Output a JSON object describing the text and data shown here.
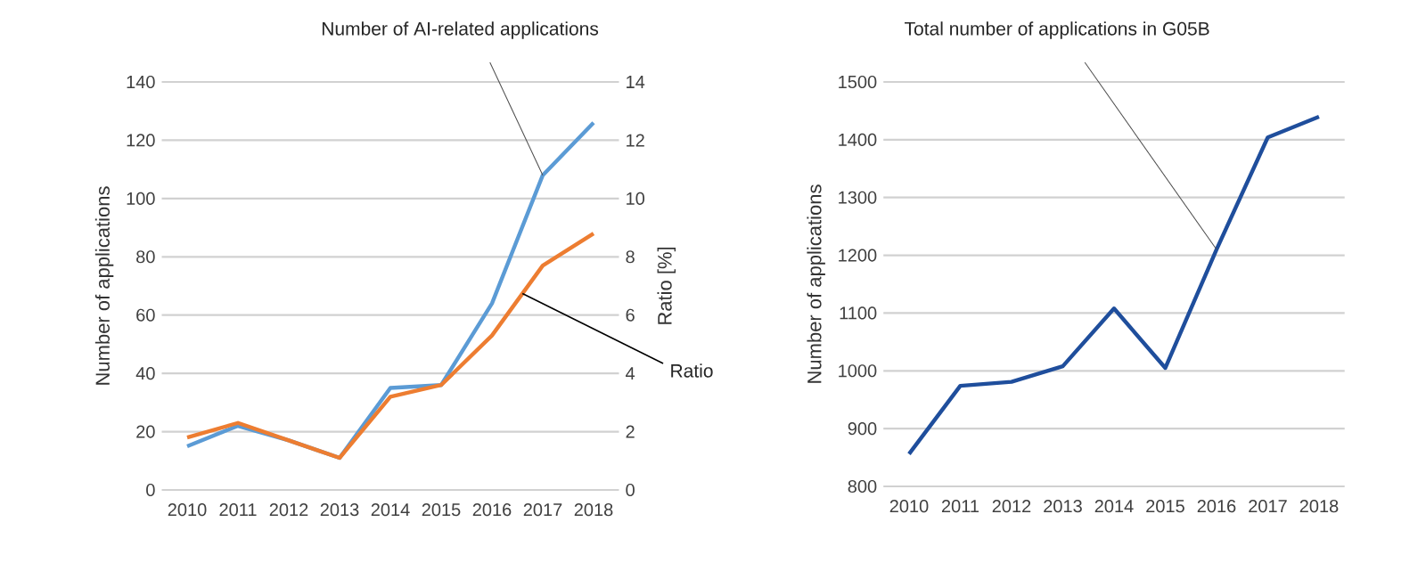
{
  "chart_data": [
    {
      "type": "line",
      "categories": [
        "2010",
        "2011",
        "2012",
        "2013",
        "2014",
        "2015",
        "2016",
        "2017",
        "2018"
      ],
      "ylabel": "Number of applications",
      "y2label": "Ratio [%]",
      "ylim": [
        0,
        140
      ],
      "yticks": [
        0,
        20,
        40,
        60,
        80,
        100,
        120,
        140
      ],
      "y2lim": [
        0,
        14
      ],
      "y2ticks": [
        0,
        2,
        4,
        6,
        8,
        10,
        12,
        14
      ],
      "grid": "y",
      "line_style": "solid",
      "marker": "none",
      "series": [
        {
          "name": "Number of AI-related applications",
          "color": "#5b9bd5",
          "values": [
            15,
            22,
            17,
            11,
            35,
            36,
            64,
            108,
            126
          ]
        },
        {
          "name": "Ratio",
          "color": "#ed7d31",
          "axis": "y2",
          "values": [
            1.8,
            2.3,
            1.7,
            1.1,
            3.2,
            3.6,
            5.3,
            7.7,
            8.8
          ]
        }
      ]
    },
    {
      "type": "line",
      "categories": [
        "2010",
        "2011",
        "2012",
        "2013",
        "2014",
        "2015",
        "2016",
        "2017",
        "2018"
      ],
      "ylabel": "Number of applications",
      "ylim": [
        800,
        1500
      ],
      "yticks": [
        800,
        900,
        1000,
        1100,
        1200,
        1300,
        1400,
        1500
      ],
      "grid": "y",
      "line_style": "solid",
      "marker": "none",
      "series": [
        {
          "name": "Total number of applications in G05B",
          "color": "#1f4e9c",
          "values": [
            856,
            974,
            981,
            1008,
            1108,
            1005,
            1210,
            1404,
            1440
          ]
        }
      ]
    }
  ]
}
